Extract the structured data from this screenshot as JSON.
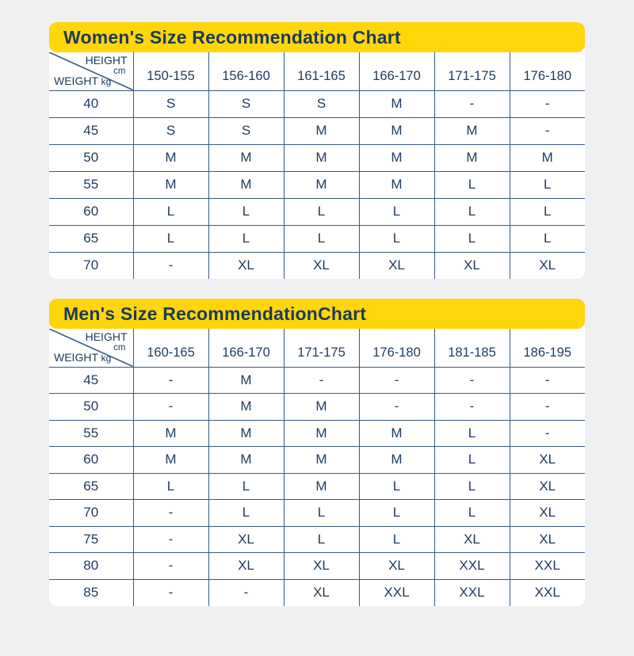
{
  "page": {
    "background_color": "#f0eff1",
    "banner_color": "#ffd60a",
    "text_color": "#1d3a5c",
    "border_color": "#3a5a7d"
  },
  "chart_data": [
    {
      "type": "table",
      "title": "Women's Size Recommendation Chart",
      "corner": {
        "height_label": "HEIGHT",
        "height_unit": "cm",
        "weight_label": "WEIGHT",
        "weight_unit": "kg"
      },
      "columns": [
        "150-155",
        "156-160",
        "161-165",
        "166-170",
        "171-175",
        "176-180"
      ],
      "rows": [
        {
          "weight": "40",
          "sizes": [
            "S",
            "S",
            "S",
            "M",
            "-",
            "-"
          ]
        },
        {
          "weight": "45",
          "sizes": [
            "S",
            "S",
            "M",
            "M",
            "M",
            "-"
          ]
        },
        {
          "weight": "50",
          "sizes": [
            "M",
            "M",
            "M",
            "M",
            "M",
            "M"
          ]
        },
        {
          "weight": "55",
          "sizes": [
            "M",
            "M",
            "M",
            "M",
            "L",
            "L"
          ]
        },
        {
          "weight": "60",
          "sizes": [
            "L",
            "L",
            "L",
            "L",
            "L",
            "L"
          ]
        },
        {
          "weight": "65",
          "sizes": [
            "L",
            "L",
            "L",
            "L",
            "L",
            "L"
          ]
        },
        {
          "weight": "70",
          "sizes": [
            "-",
            "XL",
            "XL",
            "XL",
            "XL",
            "XL"
          ]
        }
      ]
    },
    {
      "type": "table",
      "title": "Men's Size RecommendationChart",
      "corner": {
        "height_label": "HEIGHT",
        "height_unit": "cm",
        "weight_label": "WEIGHT",
        "weight_unit": "kg"
      },
      "columns": [
        "160-165",
        "166-170",
        "171-175",
        "176-180",
        "181-185",
        "186-195"
      ],
      "rows": [
        {
          "weight": "45",
          "sizes": [
            "-",
            "M",
            "-",
            "-",
            "-",
            "-"
          ]
        },
        {
          "weight": "50",
          "sizes": [
            "-",
            "M",
            "M",
            "-",
            "-",
            "-"
          ]
        },
        {
          "weight": "55",
          "sizes": [
            "M",
            "M",
            "M",
            "M",
            "L",
            "-"
          ]
        },
        {
          "weight": "60",
          "sizes": [
            "M",
            "M",
            "M",
            "M",
            "L",
            "XL"
          ]
        },
        {
          "weight": "65",
          "sizes": [
            "L",
            "L",
            "M",
            "L",
            "L",
            "XL"
          ]
        },
        {
          "weight": "70",
          "sizes": [
            "-",
            "L",
            "L",
            "L",
            "L",
            "XL"
          ]
        },
        {
          "weight": "75",
          "sizes": [
            "-",
            "XL",
            "L",
            "L",
            "XL",
            "XL"
          ]
        },
        {
          "weight": "80",
          "sizes": [
            "-",
            "XL",
            "XL",
            "XL",
            "XXL",
            "XXL"
          ]
        },
        {
          "weight": "85",
          "sizes": [
            "-",
            "-",
            "XL",
            "XXL",
            "XXL",
            "XXL"
          ]
        }
      ]
    }
  ]
}
